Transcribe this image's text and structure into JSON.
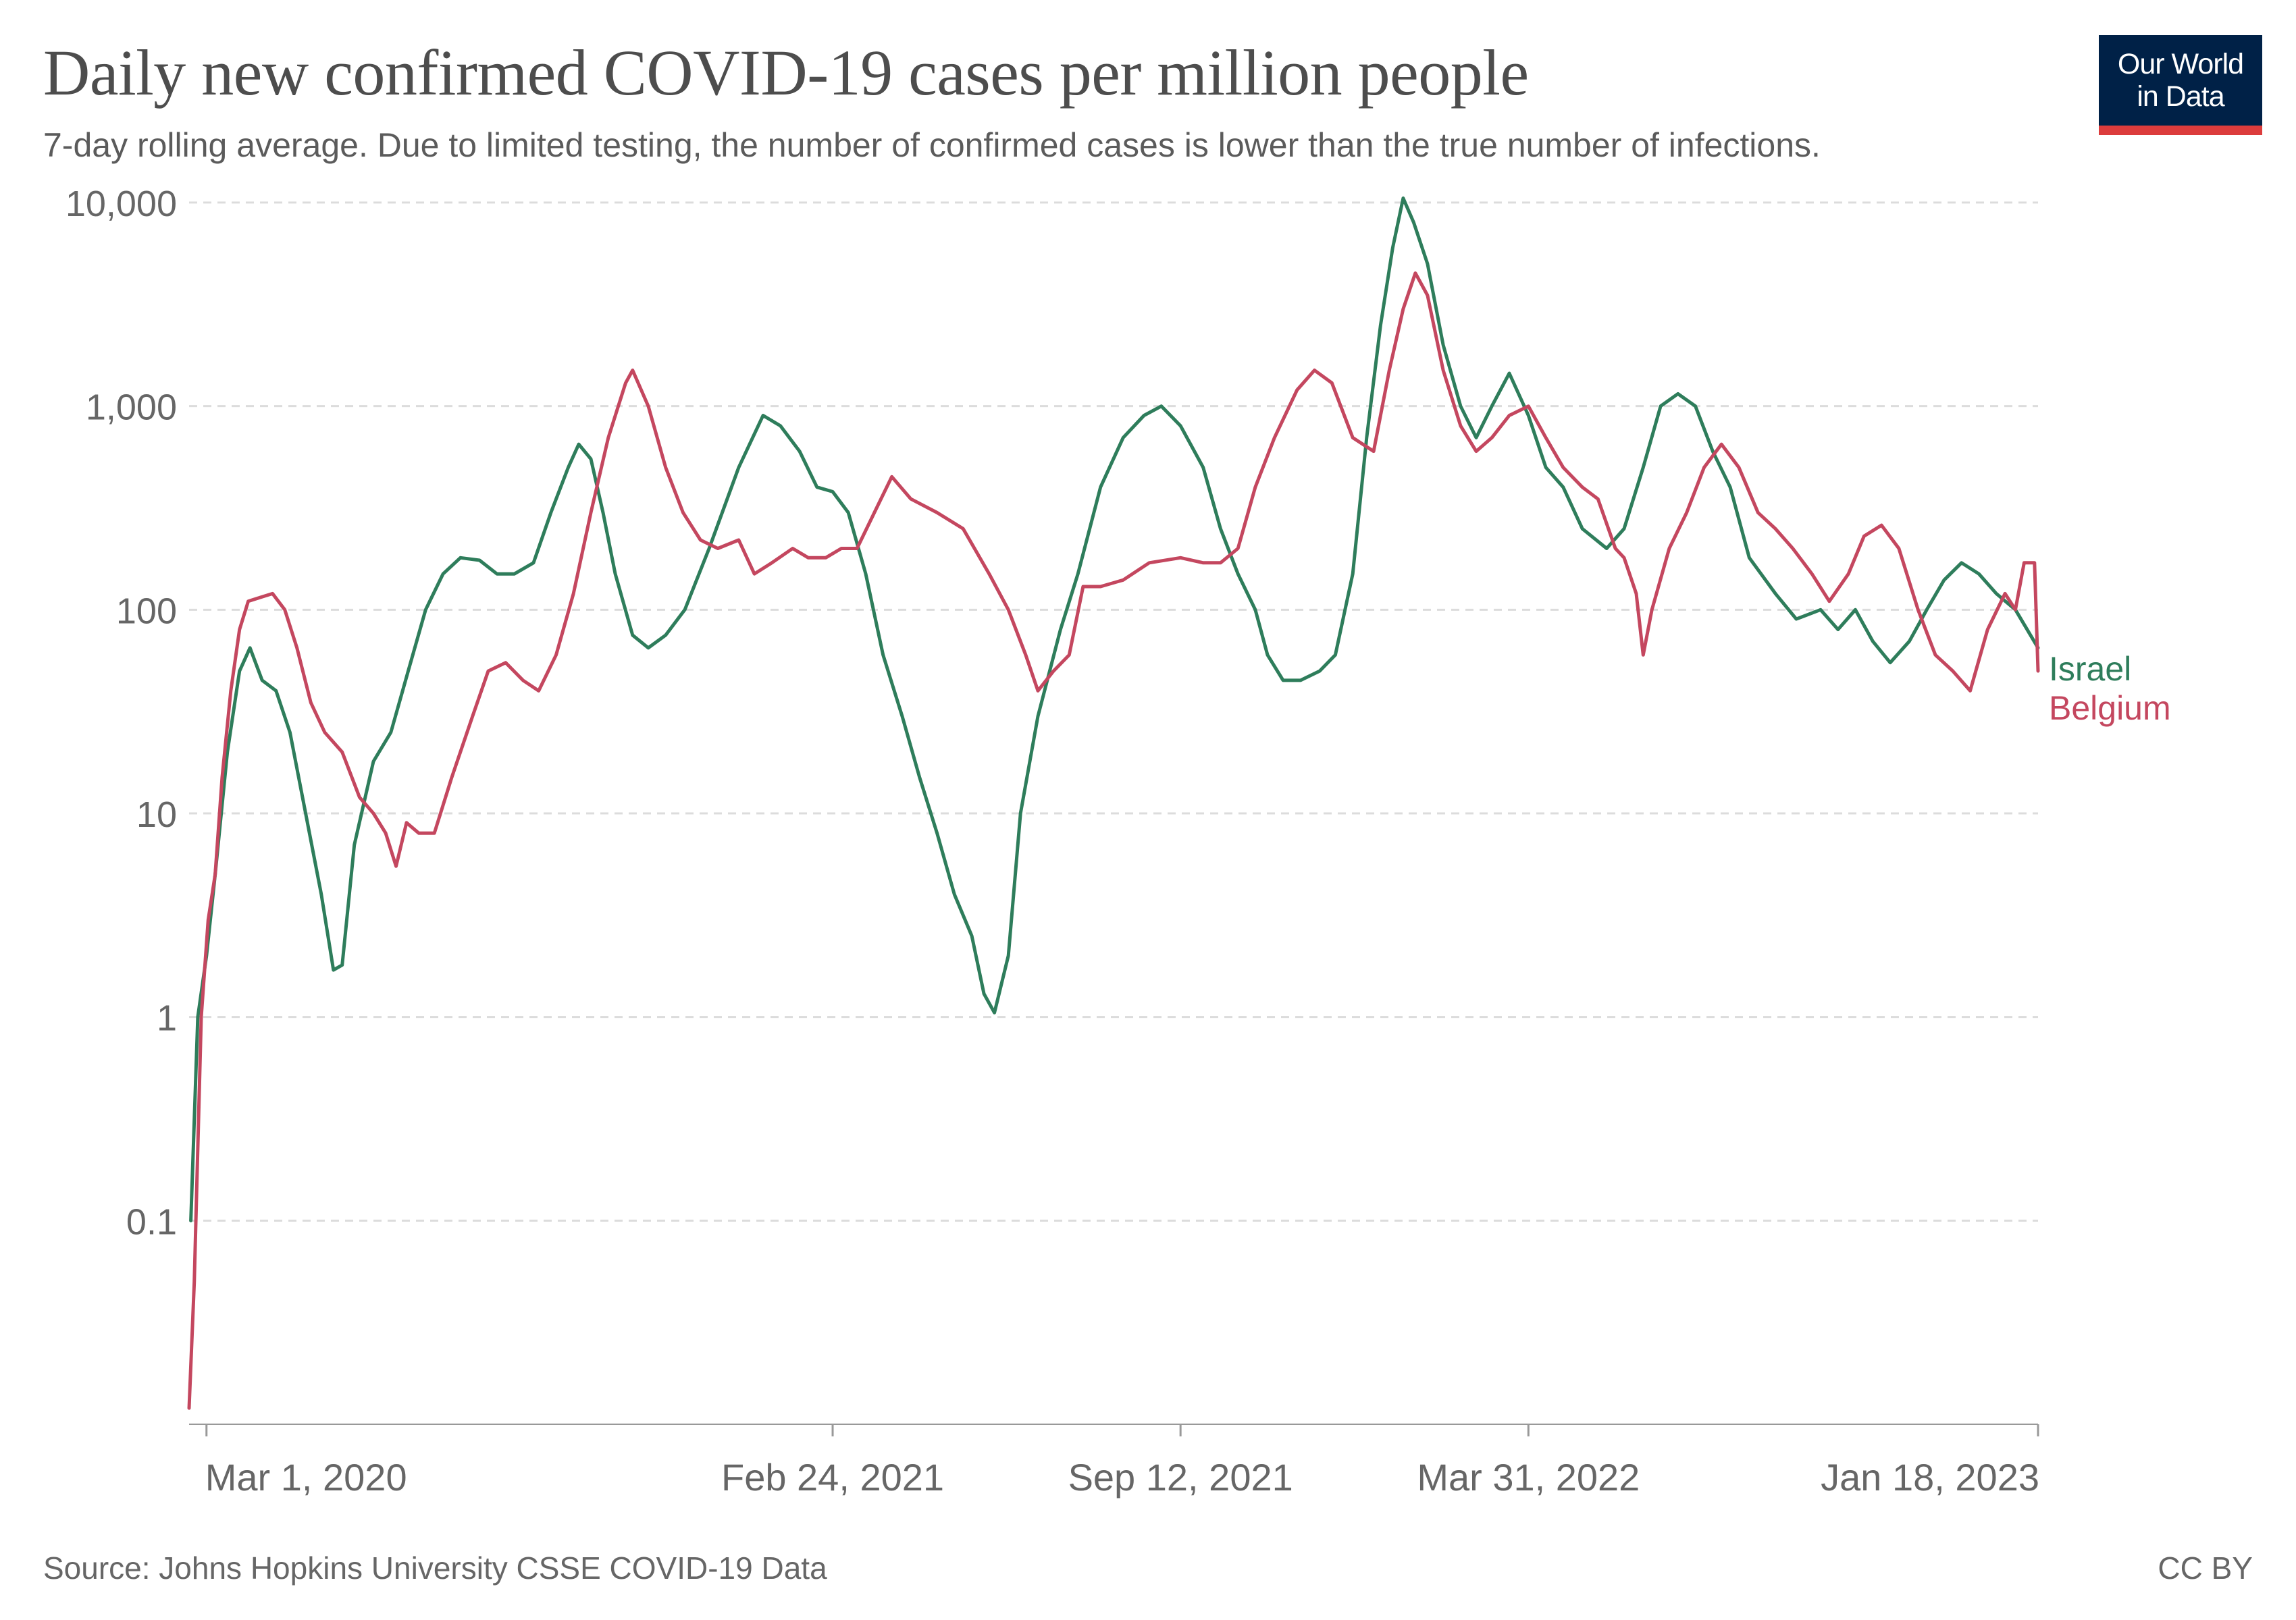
{
  "title": "Daily new confirmed COVID-19 cases per million people",
  "subtitle": "7-day rolling average. Due to limited testing, the number of confirmed cases is lower than the true number of infections.",
  "logo": {
    "line1": "Our World",
    "line2": "in Data"
  },
  "footer": {
    "source": "Source: Johns Hopkins University CSSE COVID-19 Data",
    "license": "CC BY"
  },
  "colors": {
    "israel": "#2e7d5b",
    "belgium": "#c4475f",
    "logo_bg": "#002147",
    "logo_accent": "#dc3c3c"
  },
  "chart_data": {
    "type": "line",
    "y_scale": "log",
    "ylim": [
      0.01,
      10000
    ],
    "x_range": [
      "2020-02-20",
      "2023-01-18"
    ],
    "grid": true,
    "y_ticks": [
      {
        "value": 0.1,
        "label": "0.1"
      },
      {
        "value": 1,
        "label": "1"
      },
      {
        "value": 10,
        "label": "10"
      },
      {
        "value": 100,
        "label": "100"
      },
      {
        "value": 1000,
        "label": "1,000"
      },
      {
        "value": 10000,
        "label": "10,000"
      }
    ],
    "x_ticks": [
      {
        "date": "2020-03-01",
        "label": "Mar 1, 2020"
      },
      {
        "date": "2021-02-24",
        "label": "Feb 24, 2021"
      },
      {
        "date": "2021-09-12",
        "label": "Sep 12, 2021"
      },
      {
        "date": "2022-03-31",
        "label": "Mar 31, 2022"
      },
      {
        "date": "2023-01-18",
        "label": "Jan 18, 2023"
      }
    ],
    "legend_placement": "right, at line ends",
    "series": [
      {
        "name": "Israel",
        "color": "#2e7d5b",
        "points": [
          [
            "2020-02-21",
            0.1
          ],
          [
            "2020-02-25",
            1
          ],
          [
            "2020-03-01",
            2
          ],
          [
            "2020-03-06",
            5
          ],
          [
            "2020-03-13",
            20
          ],
          [
            "2020-03-20",
            50
          ],
          [
            "2020-03-26",
            65
          ],
          [
            "2020-04-02",
            45
          ],
          [
            "2020-04-10",
            40
          ],
          [
            "2020-04-18",
            25
          ],
          [
            "2020-04-27",
            10
          ],
          [
            "2020-05-06",
            4
          ],
          [
            "2020-05-13",
            1.7
          ],
          [
            "2020-05-18",
            1.8
          ],
          [
            "2020-05-25",
            7
          ],
          [
            "2020-06-05",
            18
          ],
          [
            "2020-06-15",
            25
          ],
          [
            "2020-06-25",
            50
          ],
          [
            "2020-07-05",
            100
          ],
          [
            "2020-07-15",
            150
          ],
          [
            "2020-07-25",
            180
          ],
          [
            "2020-08-05",
            175
          ],
          [
            "2020-08-15",
            150
          ],
          [
            "2020-08-25",
            150
          ],
          [
            "2020-09-05",
            170
          ],
          [
            "2020-09-15",
            300
          ],
          [
            "2020-09-25",
            500
          ],
          [
            "2020-10-01",
            650
          ],
          [
            "2020-10-08",
            550
          ],
          [
            "2020-10-15",
            300
          ],
          [
            "2020-10-22",
            150
          ],
          [
            "2020-11-01",
            75
          ],
          [
            "2020-11-10",
            65
          ],
          [
            "2020-11-20",
            75
          ],
          [
            "2020-12-01",
            100
          ],
          [
            "2020-12-15",
            200
          ],
          [
            "2021-01-01",
            500
          ],
          [
            "2021-01-15",
            900
          ],
          [
            "2021-01-25",
            800
          ],
          [
            "2021-02-05",
            600
          ],
          [
            "2021-02-15",
            400
          ],
          [
            "2021-02-24",
            380
          ],
          [
            "2021-03-05",
            300
          ],
          [
            "2021-03-15",
            150
          ],
          [
            "2021-03-25",
            60
          ],
          [
            "2021-04-05",
            30
          ],
          [
            "2021-04-15",
            15
          ],
          [
            "2021-04-25",
            8
          ],
          [
            "2021-05-05",
            4
          ],
          [
            "2021-05-15",
            2.5
          ],
          [
            "2021-05-22",
            1.3
          ],
          [
            "2021-05-28",
            1.05
          ],
          [
            "2021-06-05",
            2
          ],
          [
            "2021-06-12",
            10
          ],
          [
            "2021-06-22",
            30
          ],
          [
            "2021-07-05",
            80
          ],
          [
            "2021-07-15",
            150
          ],
          [
            "2021-07-28",
            400
          ],
          [
            "2021-08-10",
            700
          ],
          [
            "2021-08-22",
            900
          ],
          [
            "2021-09-01",
            1000
          ],
          [
            "2021-09-12",
            800
          ],
          [
            "2021-09-25",
            500
          ],
          [
            "2021-10-05",
            250
          ],
          [
            "2021-10-15",
            150
          ],
          [
            "2021-10-25",
            100
          ],
          [
            "2021-11-01",
            60
          ],
          [
            "2021-11-10",
            45
          ],
          [
            "2021-11-20",
            45
          ],
          [
            "2021-12-01",
            50
          ],
          [
            "2021-12-10",
            60
          ],
          [
            "2021-12-20",
            150
          ],
          [
            "2021-12-28",
            700
          ],
          [
            "2022-01-05",
            2500
          ],
          [
            "2022-01-12",
            6000
          ],
          [
            "2022-01-18",
            10500
          ],
          [
            "2022-01-24",
            8000
          ],
          [
            "2022-02-01",
            5000
          ],
          [
            "2022-02-10",
            2000
          ],
          [
            "2022-02-20",
            1000
          ],
          [
            "2022-03-01",
            700
          ],
          [
            "2022-03-10",
            1000
          ],
          [
            "2022-03-20",
            1450
          ],
          [
            "2022-03-31",
            900
          ],
          [
            "2022-04-10",
            500
          ],
          [
            "2022-04-20",
            400
          ],
          [
            "2022-05-01",
            250
          ],
          [
            "2022-05-15",
            200
          ],
          [
            "2022-05-25",
            250
          ],
          [
            "2022-06-05",
            500
          ],
          [
            "2022-06-15",
            1000
          ],
          [
            "2022-06-25",
            1150
          ],
          [
            "2022-07-05",
            1000
          ],
          [
            "2022-07-15",
            600
          ],
          [
            "2022-07-25",
            400
          ],
          [
            "2022-08-05",
            180
          ],
          [
            "2022-08-20",
            120
          ],
          [
            "2022-09-01",
            90
          ],
          [
            "2022-09-15",
            100
          ],
          [
            "2022-09-25",
            80
          ],
          [
            "2022-10-05",
            100
          ],
          [
            "2022-10-15",
            70
          ],
          [
            "2022-10-25",
            55
          ],
          [
            "2022-11-05",
            70
          ],
          [
            "2022-11-15",
            100
          ],
          [
            "2022-11-25",
            140
          ],
          [
            "2022-12-05",
            170
          ],
          [
            "2022-12-15",
            150
          ],
          [
            "2022-12-25",
            120
          ],
          [
            "2023-01-05",
            100
          ],
          [
            "2023-01-18",
            65
          ]
        ]
      },
      {
        "name": "Belgium",
        "color": "#c4475f",
        "points": [
          [
            "2020-02-20",
            0.012
          ],
          [
            "2020-02-23",
            0.05
          ],
          [
            "2020-02-27",
            1
          ],
          [
            "2020-03-02",
            3
          ],
          [
            "2020-03-06",
            5
          ],
          [
            "2020-03-10",
            15
          ],
          [
            "2020-03-15",
            40
          ],
          [
            "2020-03-20",
            80
          ],
          [
            "2020-03-25",
            110
          ],
          [
            "2020-04-01",
            115
          ],
          [
            "2020-04-08",
            120
          ],
          [
            "2020-04-15",
            100
          ],
          [
            "2020-04-22",
            65
          ],
          [
            "2020-04-30",
            35
          ],
          [
            "2020-05-08",
            25
          ],
          [
            "2020-05-18",
            20
          ],
          [
            "2020-05-28",
            12
          ],
          [
            "2020-06-05",
            10
          ],
          [
            "2020-06-12",
            8
          ],
          [
            "2020-06-18",
            5.5
          ],
          [
            "2020-06-24",
            9
          ],
          [
            "2020-07-01",
            8
          ],
          [
            "2020-07-10",
            8
          ],
          [
            "2020-07-20",
            15
          ],
          [
            "2020-08-01",
            30
          ],
          [
            "2020-08-10",
            50
          ],
          [
            "2020-08-20",
            55
          ],
          [
            "2020-08-30",
            45
          ],
          [
            "2020-09-08",
            40
          ],
          [
            "2020-09-18",
            60
          ],
          [
            "2020-09-28",
            120
          ],
          [
            "2020-10-08",
            300
          ],
          [
            "2020-10-18",
            700
          ],
          [
            "2020-10-28",
            1300
          ],
          [
            "2020-11-01",
            1500
          ],
          [
            "2020-11-10",
            1000
          ],
          [
            "2020-11-20",
            500
          ],
          [
            "2020-11-30",
            300
          ],
          [
            "2020-12-10",
            220
          ],
          [
            "2020-12-20",
            200
          ],
          [
            "2021-01-01",
            220
          ],
          [
            "2021-01-10",
            150
          ],
          [
            "2021-01-20",
            170
          ],
          [
            "2021-02-01",
            200
          ],
          [
            "2021-02-10",
            180
          ],
          [
            "2021-02-20",
            180
          ],
          [
            "2021-03-01",
            200
          ],
          [
            "2021-03-10",
            200
          ],
          [
            "2021-03-20",
            300
          ],
          [
            "2021-03-30",
            450
          ],
          [
            "2021-04-10",
            350
          ],
          [
            "2021-04-25",
            300
          ],
          [
            "2021-05-10",
            250
          ],
          [
            "2021-05-25",
            150
          ],
          [
            "2021-06-05",
            100
          ],
          [
            "2021-06-15",
            60
          ],
          [
            "2021-06-22",
            40
          ],
          [
            "2021-07-01",
            50
          ],
          [
            "2021-07-10",
            60
          ],
          [
            "2021-07-18",
            130
          ],
          [
            "2021-07-28",
            130
          ],
          [
            "2021-08-10",
            140
          ],
          [
            "2021-08-25",
            170
          ],
          [
            "2021-09-12",
            180
          ],
          [
            "2021-09-25",
            170
          ],
          [
            "2021-10-05",
            170
          ],
          [
            "2021-10-15",
            200
          ],
          [
            "2021-10-25",
            400
          ],
          [
            "2021-11-05",
            700
          ],
          [
            "2021-11-18",
            1200
          ],
          [
            "2021-11-28",
            1500
          ],
          [
            "2021-12-08",
            1300
          ],
          [
            "2021-12-20",
            700
          ],
          [
            "2022-01-01",
            600
          ],
          [
            "2022-01-10",
            1500
          ],
          [
            "2022-01-18",
            3000
          ],
          [
            "2022-01-25",
            4500
          ],
          [
            "2022-02-01",
            3500
          ],
          [
            "2022-02-10",
            1500
          ],
          [
            "2022-02-20",
            800
          ],
          [
            "2022-03-01",
            600
          ],
          [
            "2022-03-10",
            700
          ],
          [
            "2022-03-20",
            900
          ],
          [
            "2022-03-31",
            1000
          ],
          [
            "2022-04-10",
            700
          ],
          [
            "2022-04-20",
            500
          ],
          [
            "2022-05-01",
            400
          ],
          [
            "2022-05-10",
            350
          ],
          [
            "2022-05-20",
            200
          ],
          [
            "2022-05-25",
            180
          ],
          [
            "2022-06-01",
            120
          ],
          [
            "2022-06-05",
            60
          ],
          [
            "2022-06-10",
            100
          ],
          [
            "2022-06-20",
            200
          ],
          [
            "2022-06-30",
            300
          ],
          [
            "2022-07-10",
            500
          ],
          [
            "2022-07-20",
            650
          ],
          [
            "2022-07-30",
            500
          ],
          [
            "2022-08-10",
            300
          ],
          [
            "2022-08-20",
            250
          ],
          [
            "2022-08-30",
            200
          ],
          [
            "2022-09-10",
            150
          ],
          [
            "2022-09-20",
            110
          ],
          [
            "2022-10-01",
            150
          ],
          [
            "2022-10-10",
            230
          ],
          [
            "2022-10-20",
            260
          ],
          [
            "2022-10-30",
            200
          ],
          [
            "2022-11-10",
            100
          ],
          [
            "2022-11-20",
            60
          ],
          [
            "2022-11-30",
            50
          ],
          [
            "2022-12-10",
            40
          ],
          [
            "2022-12-20",
            80
          ],
          [
            "2022-12-30",
            120
          ],
          [
            "2023-01-05",
            100
          ],
          [
            "2023-01-10",
            170
          ],
          [
            "2023-01-16",
            170
          ],
          [
            "2023-01-18",
            50
          ]
        ]
      }
    ]
  }
}
